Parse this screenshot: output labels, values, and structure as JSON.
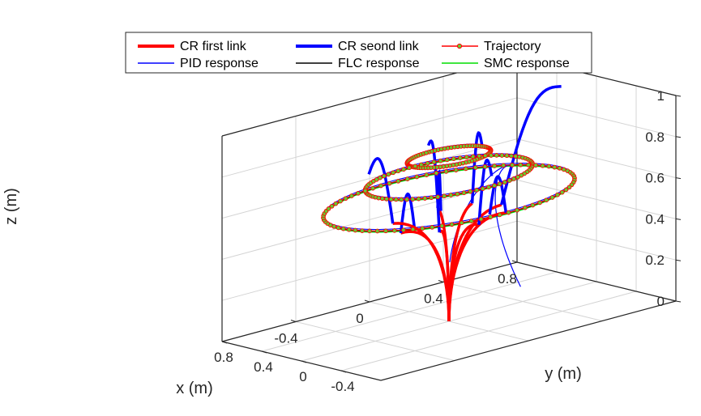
{
  "chart_data": {
    "type": "line",
    "projection": "3d",
    "xlabel": "x (m)",
    "ylabel": "y (m)",
    "zlabel": "z (m)",
    "x_ticks": [
      "-0.4",
      "0",
      "0.4",
      "0.8"
    ],
    "y_ticks": [
      "-0.4",
      "0",
      "0.4",
      "0.8"
    ],
    "z_ticks": [
      "0",
      "0.2",
      "0.4",
      "0.6",
      "0.8",
      "1"
    ],
    "xlim": [
      -0.8,
      0.8
    ],
    "ylim": [
      -0.8,
      0.8
    ],
    "zlim": [
      0,
      1
    ],
    "grid": true,
    "legend_position": "top",
    "legend": [
      {
        "label": "CR first link",
        "color": "#ff0000",
        "style": "thick-line"
      },
      {
        "label": "CR seond link",
        "color": "#0000ff",
        "style": "thick-line"
      },
      {
        "label": "Trajectory",
        "color": "#ff0000",
        "style": "line-circle-marker"
      },
      {
        "label": "PID response",
        "color": "#0000ff",
        "style": "thin-line"
      },
      {
        "label": "FLC response",
        "color": "#000000",
        "style": "thin-line"
      },
      {
        "label": "SMC response",
        "color": "#00dd00",
        "style": "thin-line"
      }
    ],
    "series": [
      {
        "name": "Trajectory",
        "shape": "circle",
        "center": [
          0,
          0
        ],
        "radius": 0.2,
        "z": 0.8
      },
      {
        "name": "Trajectory",
        "shape": "circle",
        "center": [
          0,
          0
        ],
        "radius": 0.4,
        "z": 0.7
      },
      {
        "name": "Trajectory",
        "shape": "circle",
        "center": [
          0,
          0
        ],
        "radius": 0.6,
        "z": 0.6
      },
      {
        "name": "CR first link",
        "shape": "arc",
        "base": [
          0,
          0,
          0
        ],
        "joint_height": 0.5
      },
      {
        "name": "CR seond link",
        "shape": "arc",
        "end_height_range": [
          0.5,
          1.0
        ]
      }
    ],
    "colors": {
      "first_link": "#ff0000",
      "second_link": "#0000ff",
      "trajectory": "#ff0000",
      "trajectory_marker_fill": "#66cc33",
      "pid": "#0000ff",
      "flc": "#000000",
      "smc": "#00dd00"
    }
  }
}
